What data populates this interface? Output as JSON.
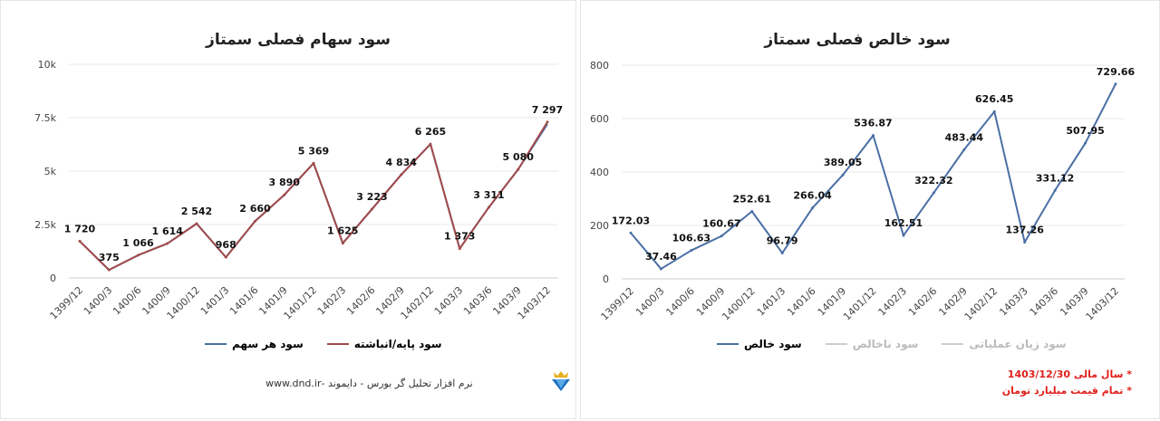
{
  "chart_data": [
    {
      "type": "line",
      "title": "سود سهام فصلی سمتاز",
      "categories": [
        "1399/12",
        "1400/3",
        "1400/6",
        "1400/9",
        "1400/12",
        "1401/3",
        "1401/6",
        "1401/9",
        "1401/12",
        "1402/3",
        "1402/6",
        "1402/9",
        "1402/12",
        "1403/3",
        "1403/6",
        "1403/9",
        "1403/12"
      ],
      "ylim": [
        0,
        10000
      ],
      "yticks": [
        0,
        2500,
        5000,
        7500,
        10000
      ],
      "ytick_labels": [
        "0",
        "2.5k",
        "5k",
        "7.5k",
        "10k"
      ],
      "grid": true,
      "legend": "bottom",
      "series": [
        {
          "name": "سود هر سهم",
          "color": "#4a6fa5",
          "values": [
            1720,
            375,
            1066,
            1614,
            2542,
            968,
            2660,
            3890,
            5369,
            1625,
            3223,
            4834,
            6265,
            1373,
            3311,
            5080,
            7200
          ]
        },
        {
          "name": "سود پایه/انباشته",
          "color": "#a24a4a",
          "values": [
            1720,
            375,
            1066,
            1614,
            2542,
            968,
            2660,
            3890,
            5369,
            1625,
            3223,
            4834,
            6265,
            1373,
            3311,
            5080,
            7297
          ]
        }
      ],
      "data_labels": [
        "1 720",
        "375",
        "1 066",
        "1 614",
        "2 542",
        "968",
        "2 660",
        "3 890",
        "5 369",
        "1 625",
        "3 223",
        "4 834",
        "6 265",
        "1 373",
        "3 311",
        "5 080",
        "7 297"
      ]
    },
    {
      "type": "line",
      "title": "سود خالص فصلی سمتاز",
      "categories": [
        "1399/12",
        "1400/3",
        "1400/6",
        "1400/9",
        "1400/12",
        "1401/3",
        "1401/6",
        "1401/9",
        "1401/12",
        "1402/3",
        "1402/6",
        "1402/9",
        "1402/12",
        "1403/3",
        "1403/6",
        "1403/9",
        "1403/12"
      ],
      "ylim": [
        0,
        800
      ],
      "yticks": [
        0,
        200,
        400,
        600,
        800
      ],
      "ytick_labels": [
        "0",
        "200",
        "400",
        "600",
        "800"
      ],
      "grid": true,
      "legend": "bottom",
      "series": [
        {
          "name": "سود خالص",
          "color": "#4a6fa5",
          "values": [
            172.03,
            37.46,
            106.63,
            160.67,
            252.61,
            96.79,
            266.04,
            389.05,
            536.87,
            162.51,
            322.32,
            483.44,
            626.45,
            137.26,
            331.12,
            507.95,
            729.66
          ]
        },
        {
          "name": "سود ناخالص",
          "color": "#cccccc",
          "hidden": true
        },
        {
          "name": "سود زیان عملیاتی",
          "color": "#cccccc",
          "hidden": true
        }
      ],
      "data_labels": [
        "172.03",
        "37.46",
        "106.63",
        "160.67",
        "252.61",
        "96.79",
        "266.04",
        "389.05",
        "536.87",
        "162.51",
        "322.32",
        "483.44",
        "626.45",
        "137.26",
        "331.12",
        "507.95",
        "729.66"
      ]
    }
  ],
  "footer": {
    "brand_text": "نرم افزار تحلیل گر بورس - دایموند -www.dnd.ir",
    "logo": "diamond-icon"
  },
  "notes": [
    "* سال مالی 1403/12/30",
    "* تمام قیمت میلیارد تومان"
  ],
  "colors": {
    "note": "#e0201b",
    "grid": "#e8e8e8"
  }
}
